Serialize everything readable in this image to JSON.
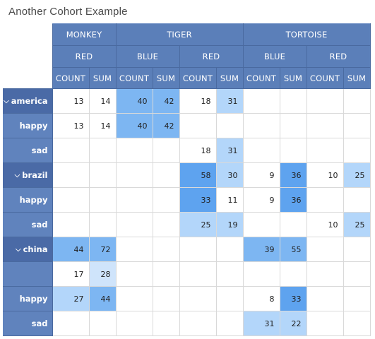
{
  "title": "Another Cohort Example",
  "columns": {
    "level1": [
      "MONKEY",
      "TIGER",
      "TORTOISE"
    ],
    "level2": [
      "RED",
      "BLUE",
      "RED",
      "BLUE",
      "RED"
    ],
    "level3": [
      "COUNT",
      "SUM",
      "COUNT",
      "SUM",
      "COUNT",
      "SUM",
      "COUNT",
      "SUM",
      "COUNT",
      "SUM"
    ]
  },
  "rows": [
    {
      "label": "america",
      "expanded": true,
      "cells": [
        "13",
        "14",
        "40",
        "42",
        "18",
        "31",
        "",
        "",
        "",
        ""
      ],
      "heat": [
        "",
        "",
        "med",
        "med",
        "",
        "light",
        "",
        "",
        "",
        ""
      ]
    },
    {
      "label": "happy",
      "expanded": false,
      "cells": [
        "13",
        "14",
        "40",
        "42",
        "",
        "",
        "",
        "",
        "",
        ""
      ],
      "heat": [
        "",
        "",
        "med",
        "med",
        "",
        "",
        "",
        "",
        "",
        ""
      ]
    },
    {
      "label": "sad",
      "expanded": false,
      "cells": [
        "",
        "",
        "",
        "",
        "18",
        "31",
        "",
        "",
        "",
        ""
      ],
      "heat": [
        "",
        "",
        "",
        "",
        "",
        "light",
        "",
        "",
        "",
        ""
      ]
    },
    {
      "label": "brazil",
      "expanded": true,
      "cells": [
        "",
        "",
        "",
        "",
        "58",
        "30",
        "9",
        "36",
        "10",
        "25"
      ],
      "heat": [
        "",
        "",
        "",
        "",
        "dark",
        "light",
        "",
        "dark",
        "",
        "light"
      ]
    },
    {
      "label": "happy",
      "expanded": false,
      "cells": [
        "",
        "",
        "",
        "",
        "33",
        "11",
        "9",
        "36",
        "",
        ""
      ],
      "heat": [
        "",
        "",
        "",
        "",
        "dark",
        "",
        "",
        "dark",
        "",
        ""
      ]
    },
    {
      "label": "sad",
      "expanded": false,
      "cells": [
        "",
        "",
        "",
        "",
        "25",
        "19",
        "",
        "",
        "10",
        "25"
      ],
      "heat": [
        "",
        "",
        "",
        "",
        "light",
        "light",
        "",
        "",
        "",
        "light"
      ]
    },
    {
      "label": "china",
      "expanded": true,
      "cells": [
        "44",
        "72",
        "",
        "",
        "",
        "",
        "39",
        "55",
        "",
        ""
      ],
      "heat": [
        "med",
        "med",
        "",
        "",
        "",
        "",
        "med",
        "med",
        "",
        ""
      ]
    },
    {
      "label": "",
      "expanded": false,
      "cells": [
        "17",
        "28",
        "",
        "",
        "",
        "",
        "",
        "",
        "",
        ""
      ],
      "heat": [
        "",
        "pale",
        "",
        "",
        "",
        "",
        "",
        "",
        "",
        ""
      ]
    },
    {
      "label": "happy",
      "expanded": false,
      "cells": [
        "27",
        "44",
        "",
        "",
        "",
        "",
        "8",
        "33",
        "",
        ""
      ],
      "heat": [
        "light",
        "med",
        "",
        "",
        "",
        "",
        "",
        "dark",
        "",
        ""
      ]
    },
    {
      "label": "sad",
      "expanded": false,
      "cells": [
        "",
        "",
        "",
        "",
        "",
        "",
        "31",
        "22",
        "",
        ""
      ],
      "heat": [
        "",
        "",
        "",
        "",
        "",
        "",
        "light",
        "light",
        "",
        ""
      ]
    }
  ],
  "icons": {
    "expanded": "chevron-down-icon"
  }
}
